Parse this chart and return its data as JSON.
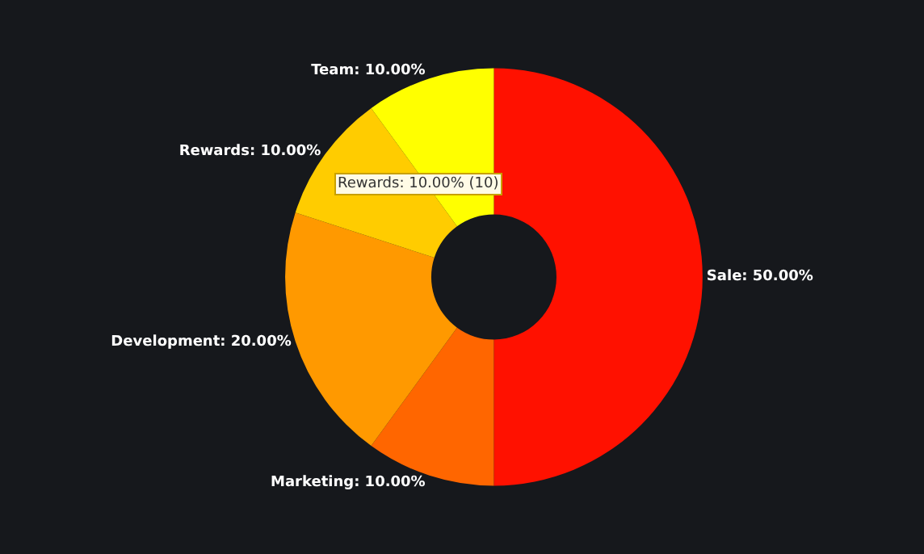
{
  "chart_data": {
    "type": "donut",
    "categories": [
      "Sale",
      "Marketing",
      "Development",
      "Rewards",
      "Team"
    ],
    "values": [
      50,
      10,
      20,
      10,
      10
    ],
    "colors": [
      "#ff1100",
      "#ff6600",
      "#ff9900",
      "#ffcc00",
      "#ffff00"
    ],
    "value_labels": [
      "50.00%",
      "10.00%",
      "20.00%",
      "10.00%",
      "10.00%"
    ],
    "annotations": [
      "Rewards: 10.00% (10)"
    ],
    "legend": false
  }
}
